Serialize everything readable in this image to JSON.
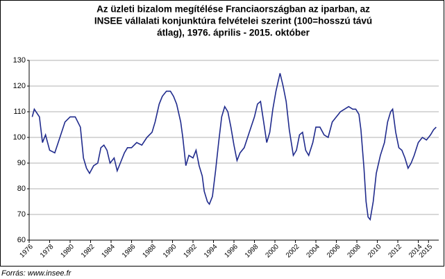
{
  "chart_data": {
    "type": "line",
    "title": [
      "Az üzleti bizalom megítélése Franciaországban az iparban, az",
      "INSEE vállalati konjunktúra felvételei szerint (100=hosszú távú",
      "átlag), 1976. április - 2015. október"
    ],
    "source": "Forrás: www.insee.fr",
    "color": "#1f2a8c",
    "x": [
      1976.3,
      1976.5,
      1977,
      1977.3,
      1977.6,
      1978,
      1978.5,
      1979,
      1979.5,
      1980,
      1980.5,
      1981,
      1981.3,
      1981.6,
      1981.9,
      1982.3,
      1982.7,
      1983,
      1983.3,
      1983.6,
      1983.9,
      1984.3,
      1984.6,
      1984.9,
      1985.3,
      1985.6,
      1986,
      1986.5,
      1987,
      1987.5,
      1988,
      1988.3,
      1988.7,
      1989,
      1989.4,
      1989.8,
      1990.1,
      1990.4,
      1990.8,
      1991,
      1991.3,
      1991.6,
      1992,
      1992.3,
      1992.6,
      1992.9,
      1993.1,
      1993.4,
      1993.6,
      1993.9,
      1994.2,
      1994.5,
      1994.8,
      1995.1,
      1995.4,
      1995.7,
      1996,
      1996.3,
      1996.6,
      1997,
      1997.5,
      1998,
      1998.3,
      1998.6,
      1998.9,
      1999.2,
      1999.5,
      1999.8,
      2000.1,
      2000.5,
      2000.8,
      2001.1,
      2001.4,
      2001.8,
      2002.1,
      2002.4,
      2002.7,
      2003,
      2003.3,
      2003.7,
      2004,
      2004.4,
      2004.8,
      2005.2,
      2005.6,
      2006,
      2006.4,
      2006.8,
      2007.2,
      2007.6,
      2007.9,
      2008.2,
      2008.4,
      2008.7,
      2008.9,
      2009.1,
      2009.3,
      2009.6,
      2009.9,
      2010.3,
      2010.7,
      2011,
      2011.3,
      2011.5,
      2011.8,
      2012.1,
      2012.4,
      2012.7,
      2013,
      2013.3,
      2013.6,
      2014,
      2014.4,
      2014.8,
      2015.2,
      2015.5,
      2015.75
    ],
    "values": [
      108,
      111,
      108,
      98,
      101,
      95,
      94,
      100,
      106,
      108,
      108,
      104,
      92,
      88,
      86,
      89,
      90,
      96,
      97,
      95,
      90,
      92,
      87,
      90,
      94,
      96,
      96,
      98,
      97,
      100,
      102,
      106,
      113,
      116,
      118,
      118,
      116,
      113,
      106,
      100,
      89,
      93,
      92,
      95,
      89,
      85,
      79,
      75,
      74,
      77,
      87,
      98,
      108,
      112,
      110,
      104,
      97,
      91,
      94,
      96,
      102,
      108,
      113,
      114,
      106,
      98,
      102,
      111,
      118,
      125,
      120,
      114,
      103,
      93,
      95,
      101,
      102,
      95,
      93,
      98,
      104,
      104,
      101,
      100,
      106,
      108,
      110,
      111,
      112,
      111,
      111,
      109,
      103,
      88,
      75,
      69,
      68,
      75,
      86,
      93,
      98,
      106,
      110,
      111,
      102,
      96,
      95,
      92,
      88,
      90,
      93,
      98,
      100,
      99,
      101,
      103,
      104
    ],
    "xlim": [
      1976,
      2016
    ],
    "xticks": [
      1976,
      1978,
      1980,
      1982,
      1984,
      1986,
      1988,
      1990,
      1992,
      1994,
      1996,
      1998,
      2000,
      2002,
      2004,
      2006,
      2008,
      2010,
      2012,
      2014,
      2015
    ],
    "ylim": [
      60,
      130
    ],
    "yticks": [
      60,
      70,
      80,
      90,
      100,
      110,
      120,
      130
    ],
    "grid": true
  }
}
